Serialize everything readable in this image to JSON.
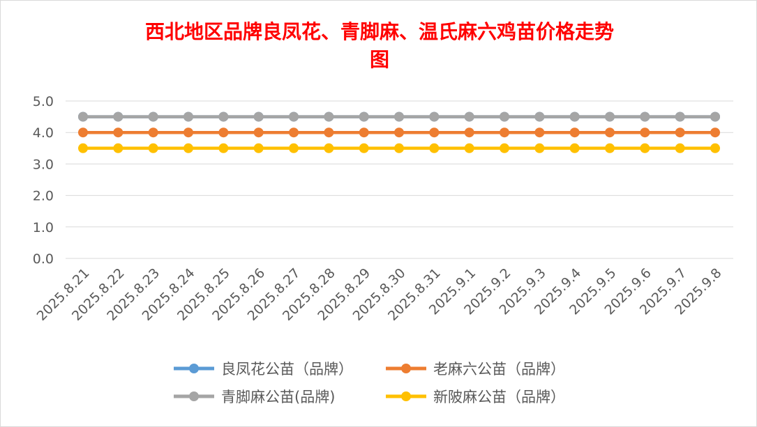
{
  "chart_data": {
    "type": "line",
    "title_line1": "西北地区品牌良凤花、青脚麻、温氏麻六鸡苗价格走势",
    "title_line2": "图",
    "categories": [
      "2025.8.21",
      "2025.8.22",
      "2025.8.23",
      "2025.8.24",
      "2025.8.25",
      "2025.8.26",
      "2025.8.27",
      "2025.8.28",
      "2025.8.29",
      "2025.8.30",
      "2025.8.31",
      "2025.9.1",
      "2025.9.2",
      "2025.9.3",
      "2025.9.4",
      "2025.9.5",
      "2025.9.6",
      "2025.9.7",
      "2025.9.8"
    ],
    "ylim": [
      0,
      5
    ],
    "yticks": [
      "0.0",
      "1.0",
      "2.0",
      "3.0",
      "4.0",
      "5.0"
    ],
    "grid": true,
    "legend_position": "bottom",
    "series": [
      {
        "name": "良凤花公苗（品牌）",
        "color": "#5b9bd5",
        "values": [
          4.5,
          4.5,
          4.5,
          4.5,
          4.5,
          4.5,
          4.5,
          4.5,
          4.5,
          4.5,
          4.5,
          4.5,
          4.5,
          4.5,
          4.5,
          4.5,
          4.5,
          4.5,
          4.5
        ]
      },
      {
        "name": "老麻六公苗（品牌）",
        "color": "#ed7d31",
        "values": [
          4.0,
          4.0,
          4.0,
          4.0,
          4.0,
          4.0,
          4.0,
          4.0,
          4.0,
          4.0,
          4.0,
          4.0,
          4.0,
          4.0,
          4.0,
          4.0,
          4.0,
          4.0,
          4.0
        ]
      },
      {
        "name": "青脚麻公苗(品牌)",
        "color": "#a5a5a5",
        "values": [
          4.5,
          4.5,
          4.5,
          4.5,
          4.5,
          4.5,
          4.5,
          4.5,
          4.5,
          4.5,
          4.5,
          4.5,
          4.5,
          4.5,
          4.5,
          4.5,
          4.5,
          4.5,
          4.5
        ]
      },
      {
        "name": "新陂麻公苗（品牌）",
        "color": "#ffc000",
        "values": [
          3.5,
          3.5,
          3.5,
          3.5,
          3.5,
          3.5,
          3.5,
          3.5,
          3.5,
          3.5,
          3.5,
          3.5,
          3.5,
          3.5,
          3.5,
          3.5,
          3.5,
          3.5,
          3.5
        ]
      }
    ]
  }
}
